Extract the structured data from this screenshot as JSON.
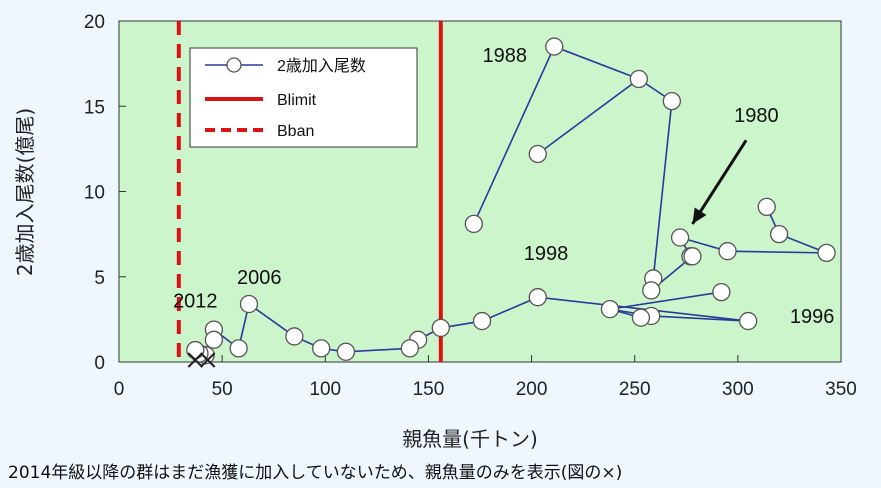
{
  "chart_data": {
    "type": "scatter",
    "xlabel": "親魚量(千トン)",
    "ylabel": "2歳加入尾数(億尾)",
    "xlim": [
      0,
      350
    ],
    "ylim": [
      0,
      20
    ],
    "x_ticks": [
      0,
      50,
      100,
      150,
      200,
      250,
      300,
      350
    ],
    "y_ticks": [
      0,
      5,
      10,
      15,
      20
    ],
    "grid": false,
    "plot_background": "#ccf5cc",
    "legend": {
      "placement": "top-left",
      "entries": [
        {
          "label": "2歳加入尾数",
          "style": "line-marker"
        },
        {
          "label": "Blimit",
          "style": "solid"
        },
        {
          "label": "Bban",
          "style": "dashed"
        }
      ]
    },
    "series": [
      {
        "name": "2歳加入尾数",
        "color": "#2b3a9a",
        "marker": "open-circle",
        "segments": [
          {
            "x": [
              314,
              320,
              343,
              295,
              272,
              277
            ],
            "y": [
              9.1,
              7.5,
              6.4,
              6.5,
              7.3,
              6.2
            ]
          },
          {
            "x": [
              172,
              211,
              252,
              268,
              259,
              258,
              278
            ],
            "y": [
              8.1,
              18.5,
              16.6,
              15.3,
              4.9,
              4.2,
              6.2
            ]
          },
          {
            "x": [
              203,
              252
            ],
            "y": [
              12.2,
              16.6
            ]
          },
          {
            "x": [
              292,
              238,
              258,
              305
            ],
            "y": [
              4.1,
              3.1,
              2.7,
              2.4
            ]
          },
          {
            "x": [
              238,
              253
            ],
            "y": [
              3.1,
              2.6
            ]
          },
          {
            "x": [
              305,
              203,
              176,
              156,
              145,
              141,
              110,
              98,
              85,
              63,
              58,
              46,
              46,
              42,
              39,
              37
            ],
            "y": [
              2.4,
              3.8,
              2.4,
              2.0,
              1.3,
              0.8,
              0.6,
              0.8,
              1.5,
              3.4,
              0.8,
              1.9,
              1.3,
              0.4,
              0.5,
              0.7
            ]
          }
        ]
      }
    ],
    "reference_lines": [
      {
        "name": "Blimit",
        "x": 156,
        "color": "#dd1111",
        "style": "solid"
      },
      {
        "name": "Bban",
        "x": 29,
        "color": "#dd1111",
        "style": "dashed"
      }
    ],
    "x_marks": [
      {
        "x": 37,
        "y": 0
      },
      {
        "x": 43,
        "y": 0
      }
    ],
    "annotations": [
      {
        "text": "1988",
        "x": 187,
        "y": 18.0
      },
      {
        "text": "1980",
        "x": 309,
        "y": 14.5
      },
      {
        "text": "1998",
        "x": 207,
        "y": 6.4
      },
      {
        "text": "1996",
        "x": 336,
        "y": 2.7
      },
      {
        "text": "2006",
        "x": 68,
        "y": 5.0
      },
      {
        "text": "2012",
        "x": 37,
        "y": 3.6
      }
    ],
    "arrow": {
      "from_x": 304,
      "from_y": 13.0,
      "to_x": 278,
      "to_y": 8.1
    }
  },
  "footnote": "2014年級以降の群はまだ漁獲に加入していないため、親魚量のみを表示(図の×)"
}
